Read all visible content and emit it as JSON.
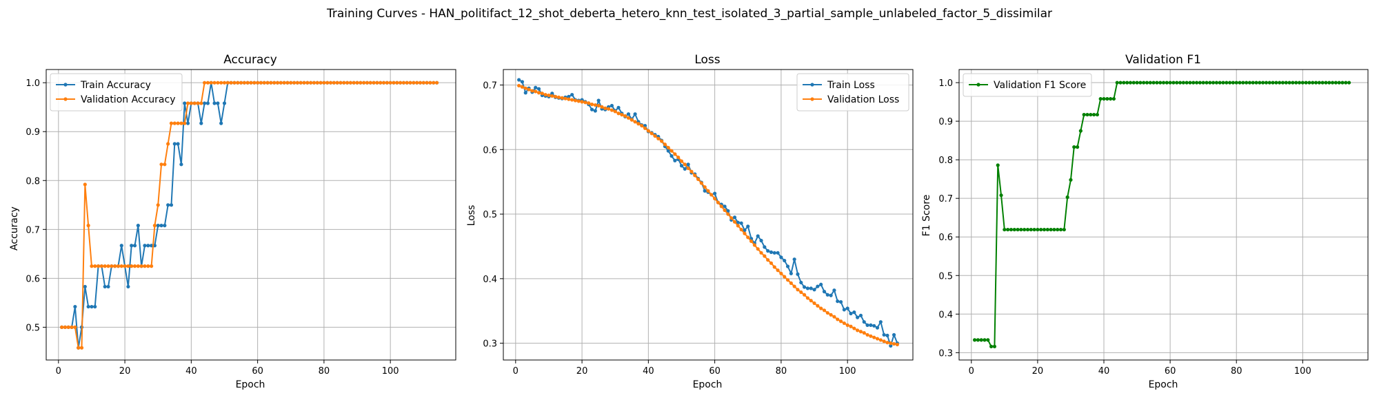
{
  "figure": {
    "title": "Training Curves - HAN_politifact_12_shot_deberta_hetero_knn_test_isolated_3_partial_sample_unlabeled_factor_5_dissimilar"
  },
  "colors": {
    "train": "#1f77b4",
    "validation": "#ff7f0e",
    "f1": "#008000",
    "grid": "#b0b0b0"
  },
  "chart_data": [
    {
      "type": "line",
      "title": "Accuracy",
      "xlabel": "Epoch",
      "ylabel": "Accuracy",
      "xlim": [
        -3.7,
        119.7
      ],
      "ylim": [
        0.433,
        1.027
      ],
      "xticks": [
        0,
        20,
        40,
        60,
        80,
        100
      ],
      "yticks": [
        0.5,
        0.6,
        0.7,
        0.8,
        0.9,
        1.0
      ],
      "ytick_labels": [
        "0.5",
        "0.6",
        "0.7",
        "0.8",
        "0.9",
        "1.0"
      ],
      "grid": true,
      "legend": "upper-left",
      "series": [
        {
          "name": "Train Accuracy",
          "color": "#1f77b4",
          "x_start": 1,
          "values": [
            0.5,
            0.5,
            0.5,
            0.5,
            0.542,
            0.458,
            0.5,
            0.583,
            0.542,
            0.542,
            0.542,
            0.625,
            0.625,
            0.583,
            0.583,
            0.625,
            0.625,
            0.625,
            0.667,
            0.625,
            0.583,
            0.667,
            0.667,
            0.708,
            0.625,
            0.667,
            0.667,
            0.667,
            0.667,
            0.708,
            0.708,
            0.708,
            0.75,
            0.75,
            0.875,
            0.875,
            0.833,
            0.958,
            0.917,
            0.958,
            0.958,
            0.958,
            0.917,
            0.958,
            0.958,
            1.0,
            0.958,
            0.958,
            0.917,
            0.958,
            1.0,
            1.0,
            1.0,
            1.0,
            1.0,
            1.0,
            1.0,
            1.0,
            1.0,
            1.0,
            1.0,
            1.0,
            1.0,
            1.0,
            1.0,
            1.0,
            1.0,
            1.0,
            1.0,
            1.0,
            1.0,
            1.0,
            1.0,
            1.0,
            1.0,
            1.0,
            1.0,
            1.0,
            1.0,
            1.0,
            1.0,
            1.0,
            1.0,
            1.0,
            1.0,
            1.0,
            1.0,
            1.0,
            1.0,
            1.0,
            1.0,
            1.0,
            1.0,
            1.0,
            1.0,
            1.0,
            1.0,
            1.0,
            1.0,
            1.0,
            1.0,
            1.0,
            1.0,
            1.0,
            1.0,
            1.0,
            1.0,
            1.0,
            1.0,
            1.0,
            1.0,
            1.0,
            1.0,
            1.0
          ]
        },
        {
          "name": "Validation Accuracy",
          "color": "#ff7f0e",
          "x_start": 1,
          "values": [
            0.5,
            0.5,
            0.5,
            0.5,
            0.5,
            0.458,
            0.458,
            0.792,
            0.708,
            0.625,
            0.625,
            0.625,
            0.625,
            0.625,
            0.625,
            0.625,
            0.625,
            0.625,
            0.625,
            0.625,
            0.625,
            0.625,
            0.625,
            0.625,
            0.625,
            0.625,
            0.625,
            0.625,
            0.708,
            0.75,
            0.833,
            0.833,
            0.875,
            0.917,
            0.917,
            0.917,
            0.917,
            0.917,
            0.958,
            0.958,
            0.958,
            0.958,
            0.958,
            1.0,
            1.0,
            1.0,
            1.0,
            1.0,
            1.0,
            1.0,
            1.0,
            1.0,
            1.0,
            1.0,
            1.0,
            1.0,
            1.0,
            1.0,
            1.0,
            1.0,
            1.0,
            1.0,
            1.0,
            1.0,
            1.0,
            1.0,
            1.0,
            1.0,
            1.0,
            1.0,
            1.0,
            1.0,
            1.0,
            1.0,
            1.0,
            1.0,
            1.0,
            1.0,
            1.0,
            1.0,
            1.0,
            1.0,
            1.0,
            1.0,
            1.0,
            1.0,
            1.0,
            1.0,
            1.0,
            1.0,
            1.0,
            1.0,
            1.0,
            1.0,
            1.0,
            1.0,
            1.0,
            1.0,
            1.0,
            1.0,
            1.0,
            1.0,
            1.0,
            1.0,
            1.0,
            1.0,
            1.0,
            1.0,
            1.0,
            1.0,
            1.0,
            1.0,
            1.0,
            1.0
          ]
        }
      ]
    },
    {
      "type": "line",
      "title": "Loss",
      "xlabel": "Epoch",
      "ylabel": "Loss",
      "xlim": [
        -3.7,
        119.7
      ],
      "ylim": [
        0.274,
        0.724
      ],
      "xticks": [
        0,
        20,
        40,
        60,
        80,
        100
      ],
      "yticks": [
        0.3,
        0.4,
        0.5,
        0.6,
        0.7
      ],
      "ytick_labels": [
        "0.3",
        "0.4",
        "0.5",
        "0.6",
        "0.7"
      ],
      "grid": true,
      "legend": "upper-right",
      "series": [
        {
          "name": "Train Loss",
          "color": "#1f77b4",
          "x_start": 1,
          "values": [
            0.708,
            0.705,
            0.688,
            0.695,
            0.689,
            0.696,
            0.694,
            0.684,
            0.683,
            0.682,
            0.687,
            0.681,
            0.68,
            0.679,
            0.681,
            0.682,
            0.685,
            0.677,
            0.676,
            0.677,
            0.674,
            0.67,
            0.662,
            0.66,
            0.676,
            0.663,
            0.662,
            0.666,
            0.668,
            0.66,
            0.665,
            0.656,
            0.651,
            0.655,
            0.647,
            0.655,
            0.643,
            0.638,
            0.637,
            0.628,
            0.626,
            0.623,
            0.62,
            0.614,
            0.605,
            0.598,
            0.59,
            0.583,
            0.585,
            0.575,
            0.57,
            0.577,
            0.564,
            0.562,
            0.555,
            0.549,
            0.536,
            0.534,
            0.53,
            0.532,
            0.518,
            0.515,
            0.512,
            0.505,
            0.491,
            0.495,
            0.487,
            0.486,
            0.475,
            0.481,
            0.462,
            0.455,
            0.466,
            0.459,
            0.449,
            0.443,
            0.441,
            0.44,
            0.44,
            0.433,
            0.428,
            0.419,
            0.408,
            0.43,
            0.407,
            0.394,
            0.387,
            0.385,
            0.385,
            0.383,
            0.388,
            0.391,
            0.38,
            0.375,
            0.374,
            0.382,
            0.365,
            0.364,
            0.352,
            0.354,
            0.346,
            0.348,
            0.34,
            0.343,
            0.333,
            0.328,
            0.328,
            0.327,
            0.324,
            0.333,
            0.313,
            0.312,
            0.296,
            0.313,
            0.3
          ]
        },
        {
          "name": "Validation Loss",
          "color": "#ff7f0e",
          "x_start": 1,
          "values": [
            0.699,
            0.697,
            0.695,
            0.693,
            0.691,
            0.69,
            0.688,
            0.687,
            0.685,
            0.684,
            0.683,
            0.682,
            0.681,
            0.68,
            0.679,
            0.678,
            0.677,
            0.676,
            0.675,
            0.674,
            0.673,
            0.672,
            0.67,
            0.669,
            0.668,
            0.666,
            0.664,
            0.663,
            0.661,
            0.659,
            0.656,
            0.654,
            0.652,
            0.649,
            0.646,
            0.643,
            0.64,
            0.637,
            0.633,
            0.629,
            0.625,
            0.621,
            0.617,
            0.613,
            0.608,
            0.603,
            0.598,
            0.593,
            0.588,
            0.582,
            0.577,
            0.571,
            0.566,
            0.56,
            0.554,
            0.548,
            0.542,
            0.536,
            0.53,
            0.524,
            0.518,
            0.512,
            0.506,
            0.5,
            0.494,
            0.488,
            0.482,
            0.476,
            0.47,
            0.464,
            0.458,
            0.452,
            0.446,
            0.44,
            0.435,
            0.429,
            0.424,
            0.418,
            0.413,
            0.408,
            0.403,
            0.398,
            0.393,
            0.388,
            0.383,
            0.379,
            0.375,
            0.37,
            0.366,
            0.362,
            0.358,
            0.354,
            0.351,
            0.347,
            0.344,
            0.341,
            0.337,
            0.334,
            0.331,
            0.328,
            0.326,
            0.323,
            0.32,
            0.318,
            0.316,
            0.313,
            0.311,
            0.309,
            0.307,
            0.305,
            0.303,
            0.301,
            0.3,
            0.299,
            0.298
          ]
        }
      ]
    },
    {
      "type": "line",
      "title": "Validation F1",
      "xlabel": "Epoch",
      "ylabel": "F1 Score",
      "xlim": [
        -3.7,
        119.7
      ],
      "ylim": [
        0.281,
        1.034
      ],
      "xticks": [
        0,
        20,
        40,
        60,
        80,
        100
      ],
      "yticks": [
        0.3,
        0.4,
        0.5,
        0.6,
        0.7,
        0.8,
        0.9,
        1.0
      ],
      "ytick_labels": [
        "0.3",
        "0.4",
        "0.5",
        "0.6",
        "0.7",
        "0.8",
        "0.9",
        "1.0"
      ],
      "grid": true,
      "legend": "upper-left",
      "series": [
        {
          "name": "Validation F1 Score",
          "color": "#008000",
          "x_start": 1,
          "values": [
            0.333,
            0.333,
            0.333,
            0.333,
            0.333,
            0.316,
            0.316,
            0.786,
            0.708,
            0.619,
            0.619,
            0.619,
            0.619,
            0.619,
            0.619,
            0.619,
            0.619,
            0.619,
            0.619,
            0.619,
            0.619,
            0.619,
            0.619,
            0.619,
            0.619,
            0.619,
            0.619,
            0.619,
            0.703,
            0.748,
            0.833,
            0.833,
            0.875,
            0.917,
            0.917,
            0.917,
            0.917,
            0.917,
            0.958,
            0.958,
            0.958,
            0.958,
            0.958,
            1.0,
            1.0,
            1.0,
            1.0,
            1.0,
            1.0,
            1.0,
            1.0,
            1.0,
            1.0,
            1.0,
            1.0,
            1.0,
            1.0,
            1.0,
            1.0,
            1.0,
            1.0,
            1.0,
            1.0,
            1.0,
            1.0,
            1.0,
            1.0,
            1.0,
            1.0,
            1.0,
            1.0,
            1.0,
            1.0,
            1.0,
            1.0,
            1.0,
            1.0,
            1.0,
            1.0,
            1.0,
            1.0,
            1.0,
            1.0,
            1.0,
            1.0,
            1.0,
            1.0,
            1.0,
            1.0,
            1.0,
            1.0,
            1.0,
            1.0,
            1.0,
            1.0,
            1.0,
            1.0,
            1.0,
            1.0,
            1.0,
            1.0,
            1.0,
            1.0,
            1.0,
            1.0,
            1.0,
            1.0,
            1.0,
            1.0,
            1.0,
            1.0,
            1.0,
            1.0,
            1.0
          ]
        }
      ]
    }
  ]
}
